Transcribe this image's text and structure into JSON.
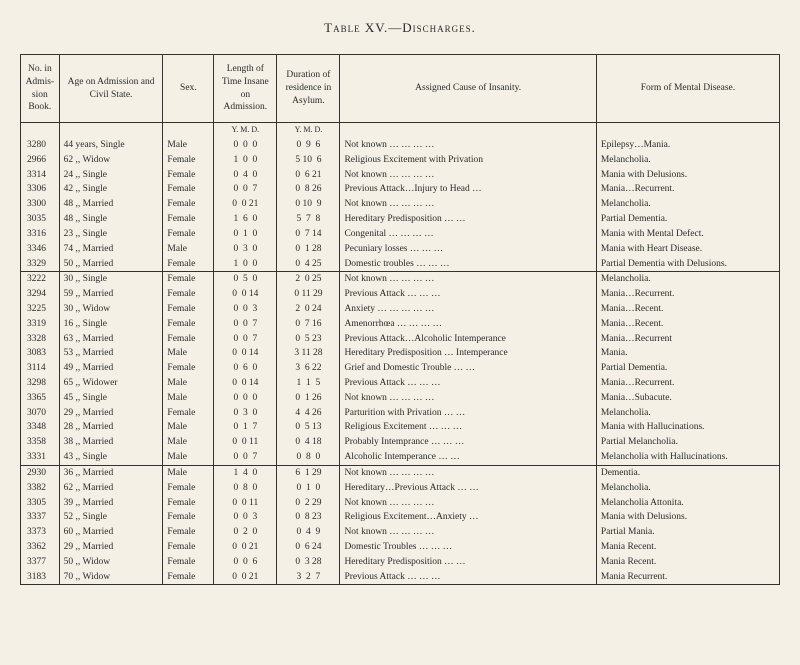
{
  "title": "Table XV.—Discharges.",
  "headers": [
    "No. in Admis­sion Book.",
    "Age on Admission and Civil State.",
    "Sex.",
    "Length of Time Insane on Admission.",
    "Duration of residence in Asylum.",
    "Assigned Cause of Insanity.",
    "Form of Mental Disease."
  ],
  "subheads": [
    "",
    "",
    "",
    "Y.  M.  D.",
    "Y.  M.  D.",
    "",
    ""
  ],
  "groups": [
    [
      [
        "3280",
        "44 years, Single",
        "Male",
        "0  0  0",
        "0  9  6",
        "Not known   …   …   …   …",
        "Epilepsy…Mania."
      ],
      [
        "2966",
        "62  ,,    Widow",
        "Female",
        "1  0  0",
        "5 10  6",
        "Religious Excitement with Privation",
        "Melancholia."
      ],
      [
        "3314",
        "24  ,,    Single",
        "Female",
        "0  4  0",
        "0  6 21",
        "Not known   …   …   …   …",
        "Mania with Delusions."
      ],
      [
        "3306",
        "42  ,,    Single",
        "Female",
        "0  0  7",
        "0  8 26",
        "Previous Attack…Injury to Head   …",
        "Mania…Recurrent."
      ],
      [
        "3300",
        "48  ,,    Married",
        "Female",
        "0  0 21",
        "0 10  9",
        "Not known   …   …   …   …",
        "Melancholia."
      ],
      [
        "3035",
        "48  ,,    Single",
        "Female",
        "1  6  0",
        "5  7  8",
        "Hereditary Predisposition   …   …",
        "Partial Dementia."
      ],
      [
        "3316",
        "23  ,,    Single",
        "Female",
        "0  1  0",
        "0  7 14",
        "Congenital   …   …   …   …",
        "Mania with Mental Defect."
      ],
      [
        "3346",
        "74  ,,    Married",
        "Male",
        "0  3  0",
        "0  1 28",
        "Pecuniary losses   …   …   …",
        "Mania with Heart Disease."
      ],
      [
        "3329",
        "50  ,,    Married",
        "Female",
        "1  0  0",
        "0  4 25",
        "Domestic troubles   …   …   …",
        "Partial Dementia with Delusions."
      ]
    ],
    [
      [
        "3222",
        "30  ,,    Single",
        "Female",
        "0  5  0",
        "2  0 25",
        "Not known   …   …   …   …",
        "Melancholia."
      ],
      [
        "3294",
        "59  ,,    Married",
        "Female",
        "0  0 14",
        "0 11 29",
        "Previous Attack   …   …   …",
        "Mania…Recurrent."
      ],
      [
        "3225",
        "30  ,,    Widow",
        "Female",
        "0  0  3",
        "2  0 24",
        "Anxiety …   …   …   …   …",
        "Mania…Recent."
      ],
      [
        "3319",
        "16  ,,    Single",
        "Female",
        "0  0  7",
        "0  7 16",
        "Amenorrhœa   …   …   …   …",
        "Mania…Recent."
      ],
      [
        "3328",
        "63  ,,    Married",
        "Female",
        "0  0  7",
        "0  5 23",
        "Previous Attack…Alcoholic Intem­perance",
        "Mania…Recurrent"
      ],
      [
        "3083",
        "53  ,,    Married",
        "Male",
        "0  0 14",
        "3 11 28",
        "Hereditary Predisposition … Intem­perance",
        "Mania."
      ],
      [
        "3114",
        "49  ,,    Married",
        "Female",
        "0  6  0",
        "3  6 22",
        "Grief and Domestic Trouble   …   …",
        "Partial Dementia."
      ],
      [
        "3298",
        "65  ,,    Widower",
        "Male",
        "0  0 14",
        "1  1  5",
        "Previous Attack   …   …   …",
        "Mania…Recurrent."
      ],
      [
        "3365",
        "45  ,,    Single",
        "Male",
        "0  0  0",
        "0  1 26",
        "Not known   …   …   …   …",
        "Mania…Subacute."
      ],
      [
        "3070",
        "29  ,,    Married",
        "Female",
        "0  3  0",
        "4  4 26",
        "Parturition with Privation   …   …",
        "Melancholia."
      ],
      [
        "3348",
        "28  ,,    Married",
        "Male",
        "0  1  7",
        "0  5 13",
        "Religious Excitement   …   …   …",
        "Mania with Hallucinations."
      ],
      [
        "3358",
        "38  ,,    Married",
        "Male",
        "0  0 11",
        "0  4 18",
        "Probably Intemprance …   …   …",
        "Partial Melancholia."
      ],
      [
        "3331",
        "43  ,,    Single",
        "Male",
        "0  0  7",
        "0  8  0",
        "Alcoholic Intemperance   …   …",
        "Melancholia with Hallu­cinations."
      ]
    ],
    [
      [
        "2930",
        "36  ,,    Married",
        "Male",
        "1  4  0",
        "6  1 29",
        "Not known   …   …   …   …",
        "Dementia."
      ],
      [
        "3382",
        "62  ,,    Married",
        "Female",
        "0  8  0",
        "0  1  0",
        "Hereditary…Previous Attack …   …",
        "Melancholia."
      ],
      [
        "3305",
        "39  ,,    Married",
        "Female",
        "0  0 11",
        "0  2 29",
        "Not known   …   …   …   …",
        "Melancholia Attonita."
      ],
      [
        "3337",
        "52  ,,    Single",
        "Female",
        "0  0  3",
        "0  8 23",
        "Religious Excitement…Anxiety   …",
        "Mania with Delusions."
      ],
      [
        "3373",
        "60  ,,    Married",
        "Female",
        "0  2  0",
        "0  4  9",
        "Not known   …   …   …   …",
        "Partial Mania."
      ],
      [
        "3362",
        "29  ,,    Married",
        "Female",
        "0  0 21",
        "0  6 24",
        "Domestic Troubles   …   …   …",
        "Mania Recent."
      ],
      [
        "3377",
        "50  ,,    Widow",
        "Female",
        "0  0  6",
        "0  3 28",
        "Hereditary Predisposition   …   …",
        "Mania Recent."
      ],
      [
        "3183",
        "70  ,,    Widow",
        "Female",
        "0  0 21",
        "3  2  7",
        "Previous Attack   …   …   …",
        "Mania Recurrent."
      ]
    ]
  ]
}
